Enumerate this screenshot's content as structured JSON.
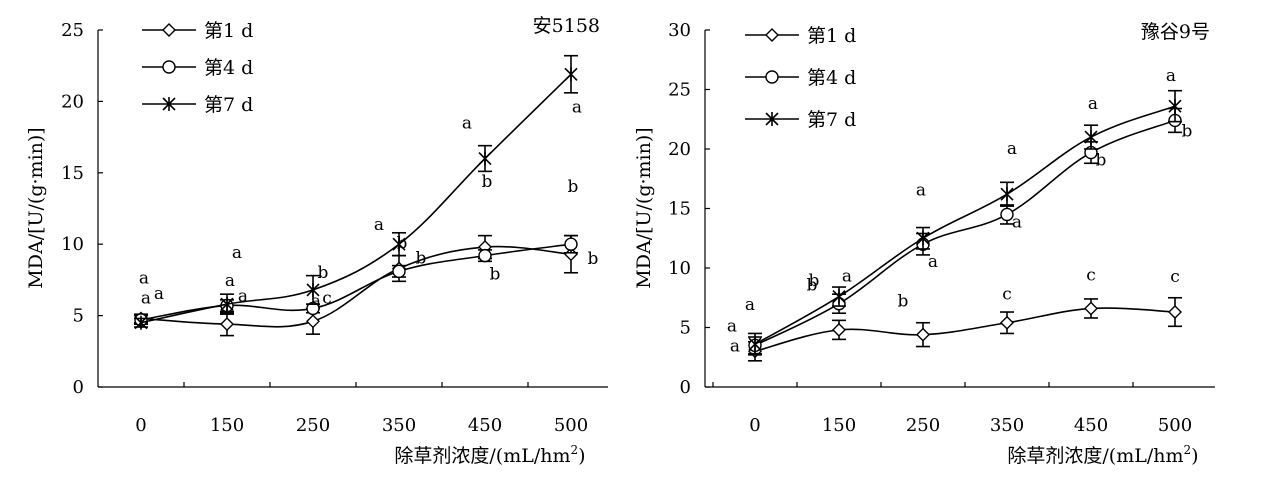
{
  "chart_data": [
    {
      "type": "line",
      "title": "安5158",
      "xlabel": "除草剂浓度/(mL/hm2)",
      "xlabel_main": "除草剂浓度/(mL/hm",
      "xlabel_sup": "2",
      "xlabel_close": ")",
      "ylabel": "MDA/[U/(g·min)]",
      "categories": [
        "0",
        "150",
        "250",
        "350",
        "450",
        "500"
      ],
      "ylim": [
        0,
        25
      ],
      "yticks": [
        "0",
        "5",
        "10",
        "15",
        "20",
        "25"
      ],
      "legend_position": "top-left",
      "series": [
        {
          "name": "第1 d",
          "marker": "diamond",
          "values": [
            4.8,
            4.4,
            4.6,
            8.3,
            9.8,
            9.3
          ],
          "errors": [
            0.3,
            0.8,
            0.9,
            0.9,
            0.8,
            1.3
          ],
          "labels": [
            "a",
            "a",
            "a",
            "b",
            "b",
            "b"
          ]
        },
        {
          "name": "第4 d",
          "marker": "circle",
          "values": [
            4.7,
            5.7,
            5.5,
            8.1,
            9.2,
            10.0
          ],
          "errors": [
            0.3,
            0.4,
            0.3,
            0.4,
            0.4,
            0.6
          ],
          "labels": [
            "a",
            "a",
            "c",
            "b",
            "b",
            "b"
          ]
        },
        {
          "name": "第7 d",
          "marker": "star",
          "values": [
            4.5,
            5.8,
            6.8,
            10.0,
            16.0,
            21.9
          ],
          "errors": [
            0.3,
            0.7,
            1.0,
            0.8,
            0.9,
            1.3
          ],
          "labels": [
            "a",
            "a",
            "b",
            "a",
            "a",
            "a"
          ]
        }
      ]
    },
    {
      "type": "line",
      "title": "豫谷9号",
      "xlabel": "除草剂浓度/(mL/hm2)",
      "xlabel_main": "除草剂浓度/(mL/hm",
      "xlabel_sup": "2",
      "xlabel_close": ")",
      "ylabel": "MDA/[U/(g·min)]",
      "categories": [
        "0",
        "150",
        "250",
        "350",
        "450",
        "500"
      ],
      "ylim": [
        0,
        30
      ],
      "yticks": [
        "0",
        "5",
        "10",
        "15",
        "20",
        "25",
        "30"
      ],
      "legend_position": "top-left",
      "series": [
        {
          "name": "第1 d",
          "marker": "diamond",
          "values": [
            3.0,
            4.8,
            4.4,
            5.4,
            6.6,
            6.3
          ],
          "errors": [
            0.8,
            0.8,
            1.0,
            0.9,
            0.8,
            1.2
          ],
          "labels": [
            "a",
            "b",
            "b",
            "c",
            "c",
            "c"
          ]
        },
        {
          "name": "第4 d",
          "marker": "circle",
          "values": [
            3.5,
            7.0,
            12.0,
            14.5,
            19.7,
            22.4
          ],
          "errors": [
            0.7,
            0.8,
            0.9,
            0.8,
            0.9,
            1.0
          ],
          "labels": [
            "a",
            "b",
            "a",
            "a",
            "b",
            "b"
          ]
        },
        {
          "name": "第7 d",
          "marker": "star",
          "values": [
            3.6,
            7.6,
            12.5,
            16.2,
            21.0,
            23.6
          ],
          "errors": [
            0.9,
            0.8,
            0.9,
            1.0,
            1.0,
            1.3
          ],
          "labels": [
            "a",
            "a",
            "a",
            "a",
            "a",
            "a"
          ]
        }
      ]
    }
  ]
}
